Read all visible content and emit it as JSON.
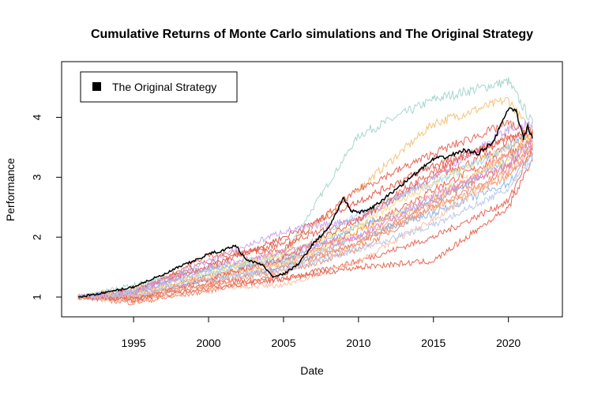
{
  "chart_data": {
    "type": "line",
    "title": "Cumulative Returns of Monte Carlo simulations and The Original Strategy",
    "xlabel": "Date",
    "ylabel": "Performance",
    "xlim": [
      1990.2,
      2023.6
    ],
    "ylim": [
      0.67,
      4.93
    ],
    "x_ticks": [
      1995,
      2000,
      2005,
      2010,
      2015,
      2020
    ],
    "y_ticks": [
      1,
      2,
      3,
      4
    ],
    "grid": false,
    "legend": {
      "position": "top-left",
      "entries": [
        {
          "label": "The Original Strategy",
          "color": "#000000"
        }
      ]
    },
    "original_strategy": {
      "name": "The Original Strategy",
      "color": "#000000",
      "x": [
        1991.3,
        1992,
        1993,
        1994,
        1995,
        1996,
        1997,
        1998,
        1999,
        2000,
        2001,
        2001.8,
        2002.5,
        2003.5,
        2004.3,
        2005,
        2006,
        2007,
        2008,
        2009,
        2009.5,
        2010,
        2011,
        2012,
        2013,
        2014,
        2015,
        2016,
        2017,
        2018,
        2019,
        2020,
        2020.5,
        2021,
        2021.3,
        2021.6
      ],
      "y": [
        1.0,
        1.03,
        1.07,
        1.12,
        1.17,
        1.28,
        1.37,
        1.5,
        1.6,
        1.72,
        1.78,
        1.87,
        1.62,
        1.55,
        1.35,
        1.38,
        1.55,
        1.9,
        2.15,
        2.65,
        2.45,
        2.4,
        2.5,
        2.7,
        2.9,
        3.1,
        3.3,
        3.35,
        3.45,
        3.4,
        3.6,
        4.15,
        4.1,
        3.65,
        3.85,
        3.65
      ]
    },
    "simulations": {
      "x": [
        1991.3,
        1995,
        2000,
        2005,
        2010,
        2015,
        2020,
        2021.6
      ],
      "series": [
        {
          "color": "#a6d6cf",
          "values": [
            1,
            1.2,
            1.5,
            1.7,
            3.7,
            4.3,
            4.6,
            3.9
          ]
        },
        {
          "color": "#f5c27a",
          "values": [
            1,
            1.15,
            1.45,
            1.75,
            2.8,
            3.9,
            4.3,
            3.7
          ]
        },
        {
          "color": "#e8685a",
          "values": [
            1,
            1.1,
            1.6,
            1.9,
            2.3,
            3.0,
            3.5,
            3.7
          ]
        },
        {
          "color": "#e8685a",
          "values": [
            1,
            1.05,
            1.35,
            1.6,
            2.1,
            2.8,
            3.4,
            3.6
          ]
        },
        {
          "color": "#e47b6b",
          "values": [
            1,
            0.95,
            1.2,
            1.5,
            1.9,
            2.6,
            3.2,
            3.5
          ]
        },
        {
          "color": "#e8685a",
          "values": [
            1,
            1.0,
            1.25,
            1.3,
            1.6,
            2.0,
            2.6,
            3.5
          ]
        },
        {
          "color": "#e05a4f",
          "values": [
            1,
            1.1,
            1.5,
            2.0,
            2.6,
            3.2,
            3.6,
            3.8
          ]
        },
        {
          "color": "#ee8a70",
          "values": [
            1,
            0.9,
            1.1,
            1.4,
            1.8,
            2.5,
            3.1,
            3.4
          ]
        },
        {
          "color": "#e8685a",
          "values": [
            1,
            1.05,
            1.7,
            1.8,
            2.8,
            3.4,
            3.9,
            3.7
          ]
        },
        {
          "color": "#c9a6f0",
          "values": [
            1,
            1.1,
            1.6,
            2.1,
            2.3,
            3.0,
            3.8,
            3.9
          ]
        },
        {
          "color": "#8fb8ea",
          "values": [
            1,
            1.08,
            1.45,
            1.6,
            2.2,
            2.6,
            3.3,
            3.6
          ]
        },
        {
          "color": "#8fb8ea",
          "values": [
            1,
            1.0,
            1.3,
            1.5,
            2.0,
            2.4,
            2.9,
            3.4
          ]
        },
        {
          "color": "#f7dc85",
          "values": [
            1,
            1.02,
            1.35,
            1.55,
            2.1,
            2.7,
            3.3,
            3.6
          ]
        },
        {
          "color": "#f7dc85",
          "values": [
            1,
            1.05,
            1.4,
            1.7,
            2.2,
            2.9,
            3.5,
            3.7
          ]
        },
        {
          "color": "#fbbfa5",
          "values": [
            1,
            0.92,
            1.15,
            1.2,
            1.6,
            2.3,
            3.1,
            3.5
          ]
        },
        {
          "color": "#f9a98a",
          "values": [
            1,
            1.0,
            1.3,
            1.55,
            2.0,
            2.6,
            3.4,
            3.6
          ]
        },
        {
          "color": "#a9d2f0",
          "values": [
            1,
            1.1,
            1.4,
            1.65,
            2.4,
            2.9,
            3.5,
            3.8
          ]
        },
        {
          "color": "#e56a55",
          "values": [
            1,
            0.95,
            1.15,
            1.3,
            1.5,
            1.6,
            2.5,
            3.3
          ]
        },
        {
          "color": "#f1a07a",
          "values": [
            1,
            1.0,
            1.2,
            1.45,
            1.9,
            2.5,
            3.0,
            3.5
          ]
        },
        {
          "color": "#d98ad6",
          "values": [
            1,
            1.05,
            1.5,
            1.75,
            2.0,
            2.7,
            3.2,
            3.6
          ]
        },
        {
          "color": "#e8685a",
          "values": [
            1,
            0.98,
            1.3,
            1.65,
            2.3,
            3.1,
            3.7,
            3.8
          ]
        },
        {
          "color": "#b7c9ef",
          "values": [
            1,
            1.03,
            1.3,
            1.45,
            1.8,
            2.2,
            2.8,
            3.3
          ]
        }
      ]
    }
  }
}
